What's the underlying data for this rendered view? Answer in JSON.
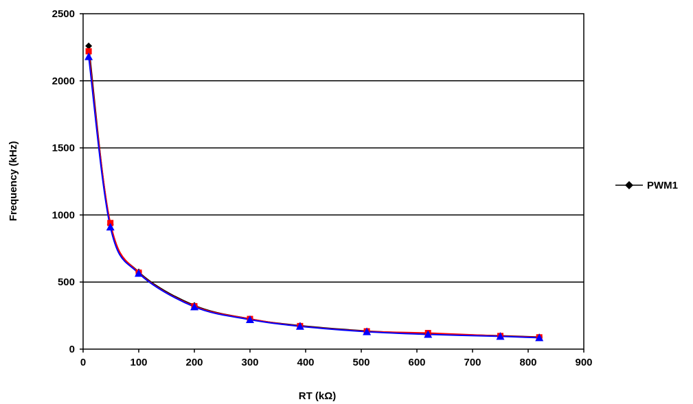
{
  "chart_data": {
    "type": "line",
    "xlabel": "RT (kΩ)",
    "ylabel": "Frequency (kHz)",
    "xlim": [
      0,
      900
    ],
    "ylim": [
      0,
      2500
    ],
    "xticks": [
      "0",
      "100",
      "200",
      "300",
      "400",
      "500",
      "600",
      "700",
      "800",
      "900"
    ],
    "yticks": [
      "0",
      "500",
      "1000",
      "1500",
      "2000",
      "2500"
    ],
    "grid": "horizontal",
    "legend_position": "right",
    "series": [
      {
        "name": "PWM1",
        "color": "#000000",
        "marker": "diamond",
        "x": [
          10,
          49,
          100,
          200,
          300,
          390,
          510,
          620,
          750,
          820
        ],
        "y": [
          2260,
          930,
          575,
          325,
          225,
          175,
          135,
          115,
          100,
          90
        ]
      },
      {
        "color": "#ff0000",
        "marker": "square",
        "x": [
          10,
          49,
          100,
          200,
          300,
          390,
          510,
          620,
          750,
          820
        ],
        "y": [
          2220,
          940,
          570,
          320,
          225,
          172,
          133,
          120,
          98,
          88
        ]
      },
      {
        "color": "#0000ff",
        "marker": "triangle",
        "x": [
          10,
          49,
          100,
          200,
          300,
          390,
          510,
          620,
          750,
          820
        ],
        "y": [
          2180,
          910,
          565,
          315,
          220,
          170,
          130,
          110,
          95,
          85
        ]
      }
    ]
  }
}
